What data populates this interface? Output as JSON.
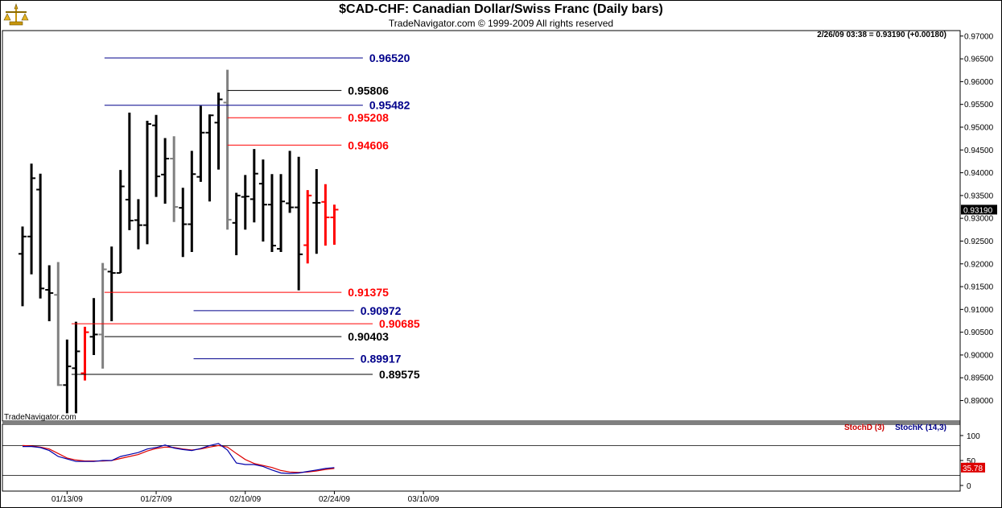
{
  "chart_data": {
    "type": "ohlc",
    "title": "$CAD-CHF:  Canadian Dollar/Swiss Franc  (Daily bars)",
    "subtitle": "TradeNavigator.com © 1999-2009 All rights reserved",
    "last_quote": "2/26/09 03:38 = 0.93190 (+0.00180)",
    "watermark": "TradeNavigator.com",
    "last_price_label": "0.93190",
    "y_ticks": [
      "0.97000",
      "0.96500",
      "0.96000",
      "0.95500",
      "0.95000",
      "0.94500",
      "0.94000",
      "0.93500",
      "0.93000",
      "0.92500",
      "0.92000",
      "0.91500",
      "0.91000",
      "0.90500",
      "0.90000",
      "0.89500",
      "0.89000"
    ],
    "ylim": [
      0.8855,
      0.9712
    ],
    "x_ticks": [
      {
        "label": "01/13/09",
        "index": 5
      },
      {
        "label": "01/27/09",
        "index": 15
      },
      {
        "label": "02/10/09",
        "index": 25
      },
      {
        "label": "02/24/09",
        "index": 35
      },
      {
        "label": "03/10/09",
        "index": 45
      }
    ],
    "colors": {
      "up": "#000000",
      "down": "#000000",
      "gray": "#808080",
      "red": "#ff0000",
      "blue": "#00008b",
      "black": "#000000"
    },
    "bars": [
      {
        "i": 0,
        "o": 0.9222,
        "h": 0.9282,
        "l": 0.9107,
        "c": 0.926,
        "color": "#000000"
      },
      {
        "i": 1,
        "o": 0.926,
        "h": 0.942,
        "l": 0.9177,
        "c": 0.9388,
        "color": "#000000"
      },
      {
        "i": 2,
        "o": 0.9363,
        "h": 0.9398,
        "l": 0.9124,
        "c": 0.9146,
        "color": "#000000"
      },
      {
        "i": 3,
        "o": 0.9143,
        "h": 0.9197,
        "l": 0.9074,
        "c": 0.9136,
        "color": "#000000"
      },
      {
        "i": 4,
        "o": 0.9132,
        "h": 0.9204,
        "l": 0.8932,
        "c": 0.8934,
        "color": "#808080"
      },
      {
        "i": 5,
        "o": 0.8934,
        "h": 0.9034,
        "l": 0.8872,
        "c": 0.8975,
        "color": "#000000"
      },
      {
        "i": 6,
        "o": 0.8971,
        "h": 0.9073,
        "l": 0.8872,
        "c": 0.9008,
        "color": "#000000"
      },
      {
        "i": 7,
        "o": 0.896,
        "h": 0.9062,
        "l": 0.8944,
        "c": 0.905,
        "color": "#ff0000"
      },
      {
        "i": 8,
        "o": 0.904,
        "h": 0.9125,
        "l": 0.9,
        "c": 0.9045,
        "color": "#000000"
      },
      {
        "i": 9,
        "o": 0.9045,
        "h": 0.9202,
        "l": 0.897,
        "c": 0.9188,
        "color": "#808080"
      },
      {
        "i": 10,
        "o": 0.9183,
        "h": 0.9238,
        "l": 0.9074,
        "c": 0.918,
        "color": "#000000"
      },
      {
        "i": 11,
        "o": 0.918,
        "h": 0.9406,
        "l": 0.918,
        "c": 0.937,
        "color": "#000000"
      },
      {
        "i": 12,
        "o": 0.9341,
        "h": 0.9532,
        "l": 0.9274,
        "c": 0.9295,
        "color": "#000000"
      },
      {
        "i": 13,
        "o": 0.9296,
        "h": 0.9342,
        "l": 0.9232,
        "c": 0.9285,
        "color": "#000000"
      },
      {
        "i": 14,
        "o": 0.9285,
        "h": 0.9514,
        "l": 0.9243,
        "c": 0.9507,
        "color": "#000000"
      },
      {
        "i": 15,
        "o": 0.9504,
        "h": 0.9527,
        "l": 0.9347,
        "c": 0.9392,
        "color": "#000000"
      },
      {
        "i": 16,
        "o": 0.9396,
        "h": 0.9476,
        "l": 0.9332,
        "c": 0.9431,
        "color": "#000000"
      },
      {
        "i": 17,
        "o": 0.9431,
        "h": 0.948,
        "l": 0.9292,
        "c": 0.9325,
        "color": "#808080"
      },
      {
        "i": 18,
        "o": 0.9323,
        "h": 0.9367,
        "l": 0.9215,
        "c": 0.9287,
        "color": "#000000"
      },
      {
        "i": 19,
        "o": 0.9287,
        "h": 0.9448,
        "l": 0.9226,
        "c": 0.9397,
        "color": "#000000"
      },
      {
        "i": 20,
        "o": 0.9391,
        "h": 0.9547,
        "l": 0.938,
        "c": 0.9488,
        "color": "#000000"
      },
      {
        "i": 21,
        "o": 0.9488,
        "h": 0.9528,
        "l": 0.9337,
        "c": 0.9526,
        "color": "#000000"
      },
      {
        "i": 22,
        "o": 0.951,
        "h": 0.9576,
        "l": 0.9407,
        "c": 0.9561,
        "color": "#000000"
      },
      {
        "i": 23,
        "o": 0.9554,
        "h": 0.9626,
        "l": 0.9275,
        "c": 0.9297,
        "color": "#808080"
      },
      {
        "i": 24,
        "o": 0.929,
        "h": 0.9356,
        "l": 0.9219,
        "c": 0.935,
        "color": "#000000"
      },
      {
        "i": 25,
        "o": 0.9347,
        "h": 0.9395,
        "l": 0.9275,
        "c": 0.9348,
        "color": "#000000"
      },
      {
        "i": 26,
        "o": 0.9342,
        "h": 0.9452,
        "l": 0.9291,
        "c": 0.9398,
        "color": "#000000"
      },
      {
        "i": 27,
        "o": 0.9376,
        "h": 0.9429,
        "l": 0.9249,
        "c": 0.933,
        "color": "#000000"
      },
      {
        "i": 28,
        "o": 0.933,
        "h": 0.9397,
        "l": 0.9226,
        "c": 0.924,
        "color": "#000000"
      },
      {
        "i": 29,
        "o": 0.9233,
        "h": 0.9397,
        "l": 0.9226,
        "c": 0.9337,
        "color": "#000000"
      },
      {
        "i": 30,
        "o": 0.9333,
        "h": 0.9448,
        "l": 0.9312,
        "c": 0.9324,
        "color": "#000000"
      },
      {
        "i": 31,
        "o": 0.9324,
        "h": 0.9435,
        "l": 0.9142,
        "c": 0.9221,
        "color": "#000000"
      },
      {
        "i": 32,
        "o": 0.9241,
        "h": 0.9362,
        "l": 0.9201,
        "c": 0.935,
        "color": "#ff0000"
      },
      {
        "i": 33,
        "o": 0.9334,
        "h": 0.9408,
        "l": 0.9222,
        "c": 0.9334,
        "color": "#000000"
      },
      {
        "i": 34,
        "o": 0.9336,
        "h": 0.9375,
        "l": 0.924,
        "c": 0.9302,
        "color": "#ff0000"
      },
      {
        "i": 35,
        "o": 0.9302,
        "h": 0.933,
        "l": 0.9242,
        "c": 0.9319,
        "color": "#ff0000"
      }
    ],
    "levels": [
      {
        "value": 0.9652,
        "label": "0.96520",
        "color": "#00008b",
        "from": 9.2,
        "to": 38.2
      },
      {
        "value": 0.95806,
        "label": "0.95806",
        "color": "#000000",
        "from": 23.0,
        "to": 35.8
      },
      {
        "value": 0.95482,
        "label": "0.95482",
        "color": "#00008b",
        "from": 9.2,
        "to": 38.2
      },
      {
        "value": 0.95208,
        "label": "0.95208",
        "color": "#ff0000",
        "from": 23.0,
        "to": 35.8
      },
      {
        "value": 0.94606,
        "label": "0.94606",
        "color": "#ff0000",
        "from": 23.0,
        "to": 35.8
      },
      {
        "value": 0.91375,
        "label": "0.91375",
        "color": "#ff0000",
        "from": 9.2,
        "to": 35.8
      },
      {
        "value": 0.90972,
        "label": "0.90972",
        "color": "#00008b",
        "from": 19.2,
        "to": 37.2
      },
      {
        "value": 0.90685,
        "label": "0.90685",
        "color": "#ff0000",
        "from": 5.5,
        "to": 39.3
      },
      {
        "value": 0.90403,
        "label": "0.90403",
        "color": "#000000",
        "from": 9.2,
        "to": 35.8
      },
      {
        "value": 0.89917,
        "label": "0.89917",
        "color": "#00008b",
        "from": 19.2,
        "to": 37.2
      },
      {
        "value": 0.89575,
        "label": "0.89575",
        "color": "#000000",
        "from": 5.5,
        "to": 39.3
      }
    ],
    "stochastic": {
      "d_label": "StochD (3)",
      "k_label": "StochK (14,3)",
      "y_ticks": [
        "100",
        "50",
        "0"
      ],
      "levels": [
        80,
        20
      ],
      "last_value_label": "35.78",
      "k": [
        78,
        78,
        76,
        70,
        58,
        53,
        48,
        48,
        48,
        50,
        50,
        58,
        62,
        66,
        73,
        76,
        81,
        75,
        72,
        70,
        74,
        80,
        84,
        71,
        45,
        42,
        42,
        38,
        31,
        25,
        24,
        25,
        28,
        31,
        34,
        35.78
      ],
      "d": [
        80,
        79,
        77,
        73,
        64,
        55,
        51,
        49,
        49,
        49,
        50,
        54,
        58,
        62,
        69,
        74,
        77,
        76,
        73,
        71,
        73,
        77,
        80,
        77,
        64,
        52,
        44,
        40,
        36,
        30,
        27,
        26,
        27,
        29,
        32,
        34
      ]
    }
  }
}
